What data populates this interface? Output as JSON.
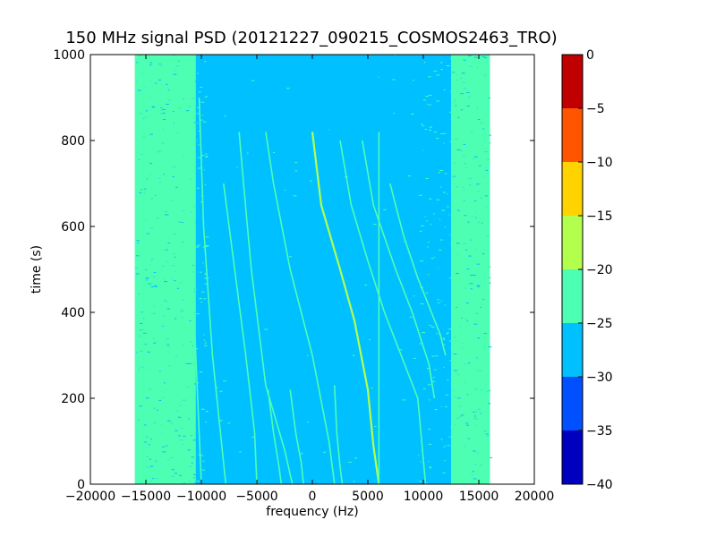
{
  "chart_data": {
    "type": "heatmap",
    "title": "150 MHz signal PSD (20121227_090215_COSMOS2463_TRO)",
    "xlabel": "frequency (Hz)",
    "ylabel": "time (s)",
    "xlim": [
      -20000,
      20000
    ],
    "ylim": [
      0,
      1000
    ],
    "x_ticks": [
      -20000,
      -15000,
      -10000,
      -5000,
      0,
      5000,
      10000,
      15000,
      20000
    ],
    "y_ticks": [
      0,
      200,
      400,
      600,
      800,
      1000
    ],
    "grid": false,
    "data_band": {
      "freq_range_hz": [
        -16000,
        16000
      ],
      "edge_level": -22.5,
      "floor_level": -27.5
    },
    "colorbar": {
      "levels": [
        -40,
        -35,
        -30,
        -25,
        -20,
        -15,
        -10,
        -5,
        0
      ],
      "colors": [
        "#0000bf",
        "#0050ff",
        "#00c0ff",
        "#4dffb2",
        "#b2ff4d",
        "#ffd200",
        "#ff5500",
        "#c00000"
      ],
      "tick_labels": [
        "-40",
        "-35",
        "-30",
        "-25",
        "-20",
        "-15",
        "-10",
        "-5",
        "0"
      ]
    },
    "traces": [
      {
        "level": "-22.5",
        "points": [
          [
            -6600,
            820
          ],
          [
            -6200,
            700
          ],
          [
            -5500,
            500
          ],
          [
            -4200,
            230
          ],
          [
            -2500,
            80
          ],
          [
            -1800,
            0
          ]
        ]
      },
      {
        "level": "-22.5",
        "points": [
          [
            -4200,
            820
          ],
          [
            -3500,
            700
          ],
          [
            -2000,
            500
          ],
          [
            0,
            300
          ],
          [
            1500,
            100
          ],
          [
            2000,
            0
          ]
        ]
      },
      {
        "level": "-17.5",
        "points": [
          [
            0,
            820
          ],
          [
            800,
            650
          ],
          [
            2500,
            500
          ],
          [
            3800,
            380
          ],
          [
            5000,
            220
          ],
          [
            5500,
            90
          ],
          [
            6000,
            0
          ]
        ]
      },
      {
        "level": "-22.5",
        "points": [
          [
            2500,
            800
          ],
          [
            3500,
            650
          ],
          [
            5000,
            520
          ],
          [
            6500,
            400
          ],
          [
            8000,
            300
          ],
          [
            9500,
            200
          ],
          [
            10200,
            0
          ]
        ]
      },
      {
        "level": "-22.5",
        "points": [
          [
            4500,
            800
          ],
          [
            5500,
            650
          ],
          [
            7500,
            500
          ],
          [
            9000,
            400
          ],
          [
            10500,
            280
          ],
          [
            11000,
            200
          ]
        ]
      },
      {
        "level": "-22.5",
        "points": [
          [
            7000,
            700
          ],
          [
            8200,
            580
          ],
          [
            9500,
            480
          ],
          [
            11500,
            350
          ],
          [
            12000,
            300
          ]
        ]
      },
      {
        "level": "-22.5",
        "points": [
          [
            -4000,
            220
          ],
          [
            -3500,
            120
          ],
          [
            -3000,
            40
          ],
          [
            -2800,
            0
          ]
        ]
      },
      {
        "level": "-22.5",
        "points": [
          [
            -2000,
            220
          ],
          [
            -1500,
            120
          ],
          [
            -1000,
            50
          ],
          [
            -800,
            0
          ]
        ]
      },
      {
        "level": "-22.5",
        "points": [
          [
            2000,
            230
          ],
          [
            2200,
            120
          ],
          [
            2500,
            40
          ],
          [
            2700,
            0
          ]
        ]
      },
      {
        "level": "-22.5",
        "points": [
          [
            -8000,
            700
          ],
          [
            -7000,
            500
          ],
          [
            -6000,
            300
          ],
          [
            -5200,
            120
          ],
          [
            -5000,
            0
          ]
        ]
      },
      {
        "level": "-22.5",
        "points": [
          [
            -10200,
            900
          ],
          [
            -9800,
            600
          ],
          [
            -9000,
            300
          ],
          [
            -8200,
            100
          ],
          [
            -7800,
            0
          ]
        ]
      },
      {
        "level": "-22.5",
        "points": [
          [
            -11500,
            900
          ],
          [
            -11000,
            600
          ],
          [
            -10500,
            300
          ],
          [
            -10000,
            0
          ]
        ]
      },
      {
        "level": "-22.5",
        "points": [
          [
            6000,
            820
          ],
          [
            6000,
            0
          ]
        ]
      }
    ]
  }
}
